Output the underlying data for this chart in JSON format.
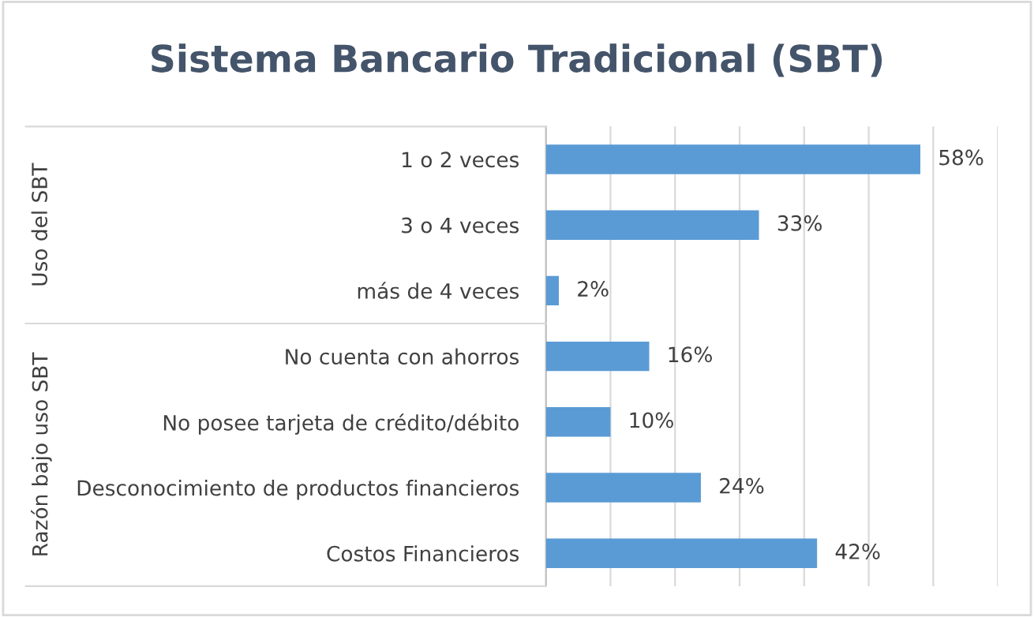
{
  "chart_data": {
    "type": "bar",
    "orientation": "horizontal",
    "title": "Sistema Bancario Tradicional (SBT)",
    "categories": [
      "1 o 2 veces",
      "3 o 4 veces",
      "más de 4 veces",
      "No cuenta con ahorros",
      "No posee tarjeta de crédito/débito",
      "Desconocimiento de productos financieros",
      "Costos Financieros"
    ],
    "values": [
      58,
      33,
      2,
      16,
      10,
      24,
      42
    ],
    "value_labels": [
      "58%",
      "33%",
      "2%",
      "16%",
      "10%",
      "24%",
      "42%"
    ],
    "color": "#5b9bd5",
    "xlim": [
      0,
      70
    ],
    "xticks": [
      {
        "value": 0,
        "label": null
      },
      {
        "value": 10,
        "label": null
      },
      {
        "value": 20,
        "label": null
      },
      {
        "value": 30,
        "label": null
      },
      {
        "value": 40,
        "label": null
      },
      {
        "value": 50,
        "label": null
      },
      {
        "value": 60,
        "label": null
      },
      {
        "value": 70,
        "label": null
      }
    ],
    "grid": "x",
    "tick_labels": "y",
    "annotations": [
      "Uso del SBT",
      "Razón bajo uso SBT"
    ]
  }
}
